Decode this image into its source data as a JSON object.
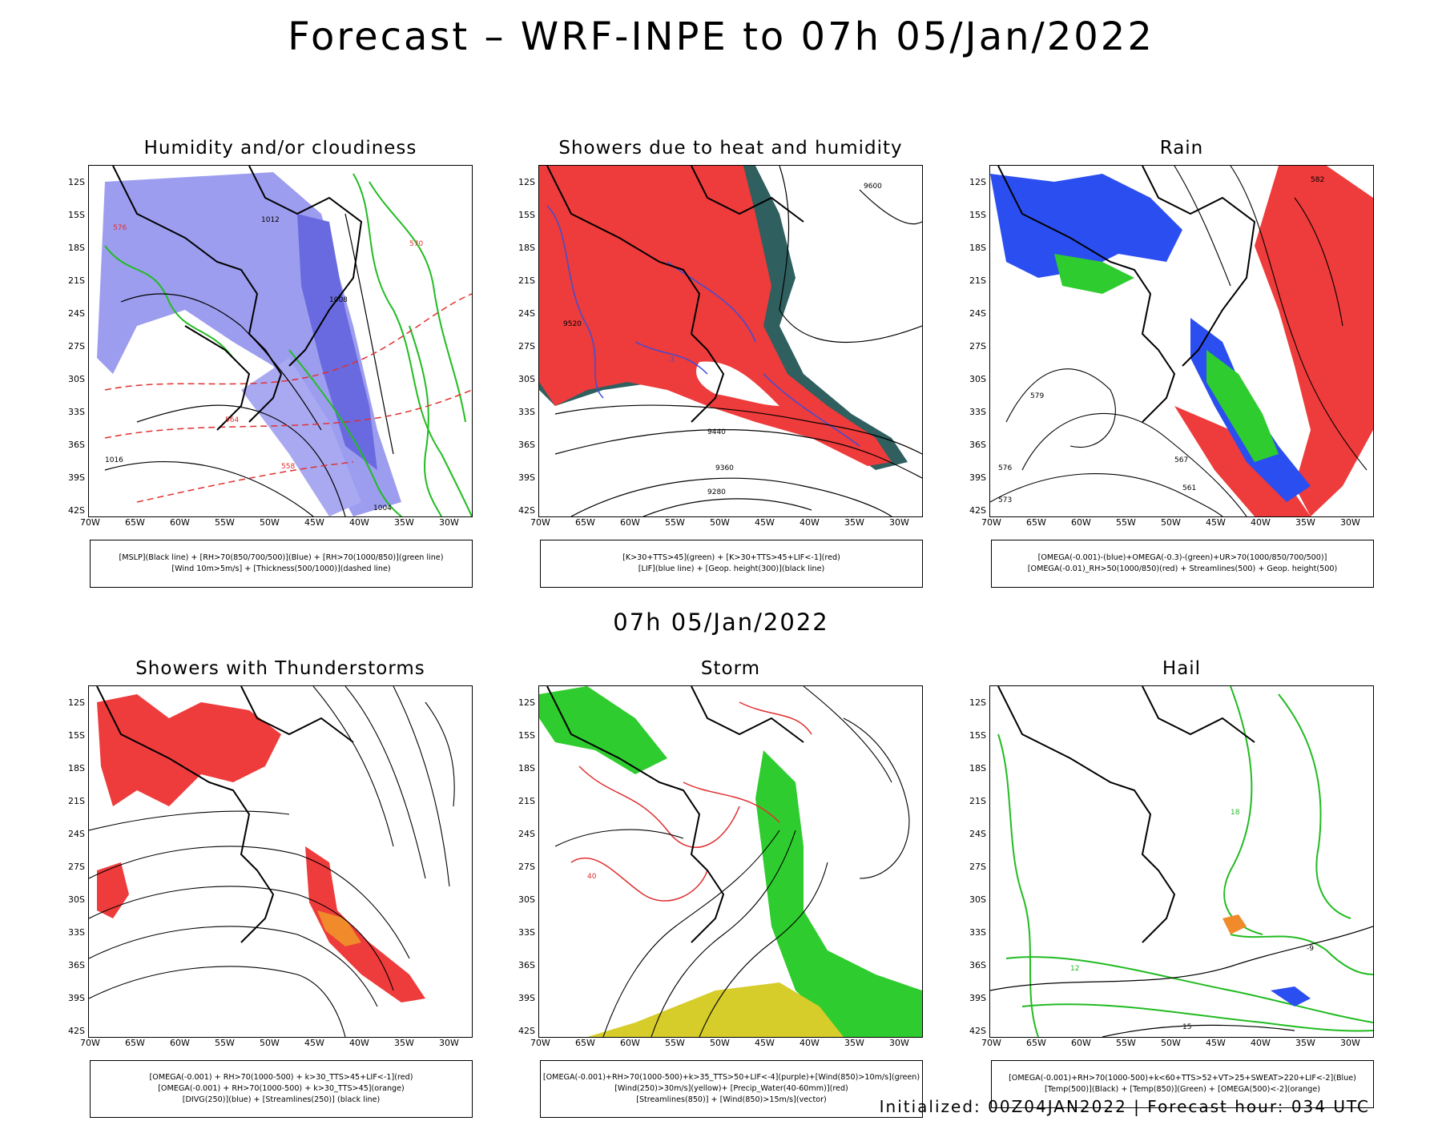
{
  "title": "Forecast – WRF-INPE to 07h 05/Jan/2022",
  "subtitle": "07h 05/Jan/2022",
  "footer": "Initialized: 00Z04JAN2022 | Forecast hour: 034 UTC",
  "lat_ticks": [
    "12S",
    "15S",
    "18S",
    "21S",
    "24S",
    "27S",
    "30S",
    "33S",
    "36S",
    "39S",
    "42S"
  ],
  "lon_ticks": [
    "70W",
    "65W",
    "60W",
    "55W",
    "50W",
    "45W",
    "40W",
    "35W",
    "30W"
  ],
  "colors": {
    "blue": "#8d8de8",
    "red": "#ee3b3b",
    "green": "#2ecc2e",
    "darkgreen": "#2f5f5f",
    "yellow": "#d6cc2a",
    "orange": "#f08a2a"
  },
  "panels": [
    {
      "title": "Humidity and/or cloudiness",
      "legend": [
        "[MSLP](Black line) + [RH>70(850/700/500)](Blue) + [RH>70(1000/850)](green line)",
        "[Wind 10m>5m/s] + [Thickness(500/1000)](dashed line)"
      ],
      "contour_labels": [
        "1012",
        "1008",
        "1004",
        "1016",
        "576",
        "570",
        "564",
        "558"
      ]
    },
    {
      "title": "Showers due to heat and humidity",
      "legend": [
        "[K>30+TTS>45](green) + [K>30+TTS>45+LIF<-1](red)",
        "[LIF](blue line) + [Geop. height(300)](black line)"
      ],
      "contour_labels": [
        "9600",
        "9520",
        "9440",
        "9360",
        "9280",
        "-3"
      ]
    },
    {
      "title": "Rain",
      "legend": [
        "[OMEGA(-0.001)-(blue)+OMEGA(-0.3)-(green)+UR>70(1000/850/700/500)]",
        "[OMEGA(-0.01)_RH>50(1000/850)(red) + Streamlines(500) + Geop. height(500)"
      ],
      "contour_labels": [
        "582",
        "579",
        "576",
        "573",
        "567",
        "561"
      ]
    },
    {
      "title": "Showers with Thunderstorms",
      "legend": [
        "[OMEGA(-0.001) + RH>70(1000-500) + k>30_TTS>45+LIF<-1](red)",
        "[OMEGA(-0.001) + RH>70(1000-500) + k>30_TTS>45](orange)",
        "[DIVG(250)](blue) + [Streamlines(250)] (black line)"
      ],
      "contour_labels": []
    },
    {
      "title": "Storm",
      "legend": [
        "[OMEGA(-0.001)+RH>70(1000-500)+k>35_TTS>50+LIF<-4](purple)+[Wind(850)>10m/s](green)",
        "[Wind(250)>30m/s](yellow)+ [Precip_Water(40-60mm)](red)",
        "[Streamlines(850)] + [Wind(850)>15m/s](vector)"
      ],
      "contour_labels": [
        "40"
      ]
    },
    {
      "title": "Hail",
      "legend": [
        "[OMEGA(-0.001)+RH>70(1000-500)+k<60+TTS>52+VT>25+SWEAT>220+LIF<-2](Blue)",
        "[Temp(500)](Black) + [Temp(850)](Green) + [OMEGA(500)<-2](orange)"
      ],
      "contour_labels": [
        "15",
        "12",
        "18",
        "-9"
      ]
    }
  ]
}
